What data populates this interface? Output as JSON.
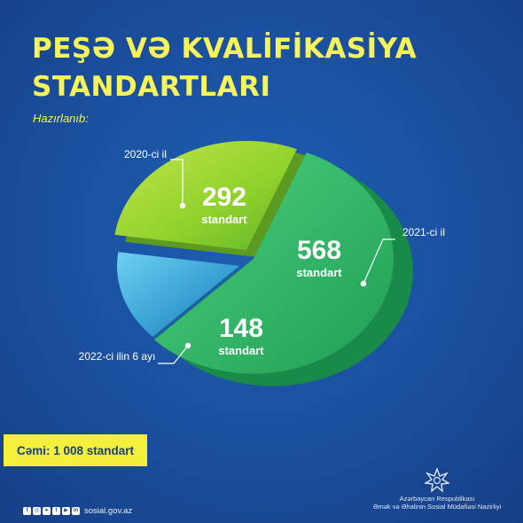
{
  "title_lines": [
    "PEŞƏ VƏ KVALİFİKASİYA",
    "STANDARTLARI"
  ],
  "subtitle": "Hazırlanıb:",
  "chart_data": {
    "type": "pie",
    "title": "PEŞƏ VƏ KVALİFİKASİYA STANDARTLARI",
    "unit": "standart",
    "slices": [
      {
        "label": "2020-ci il",
        "value": 292,
        "value_text": "292",
        "color": "#8ccf2a"
      },
      {
        "label": "2021-ci il",
        "value": 568,
        "value_text": "568",
        "color": "#2fb86a"
      },
      {
        "label": "2022-ci ilin 6 ayı",
        "value": 148,
        "value_text": "148",
        "color": "#3fa6d6"
      }
    ],
    "total": 1008
  },
  "total_label": "Cəmi: 1 008 standart",
  "social_icons": [
    "facebook-icon",
    "instagram-icon",
    "telegram-icon",
    "twitter-icon",
    "youtube-icon",
    "linkedin-icon"
  ],
  "website": "sosial.gov.az",
  "ministry": {
    "line1": "Azərbaycan Respublikası",
    "line2": "Əmək və Əhalinin Sosial Müdafiəsi Nazirliyi"
  },
  "colors": {
    "background": "#1a4f9e",
    "accent_yellow": "#f6f35b",
    "total_box": "#f4ef3a"
  }
}
